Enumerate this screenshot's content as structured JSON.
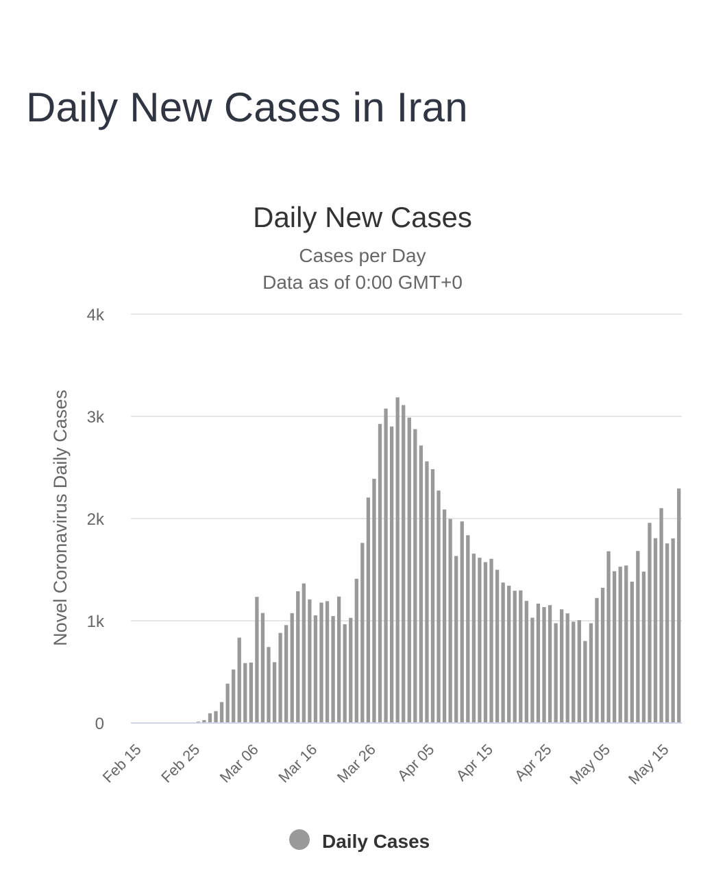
{
  "page": {
    "title": "Daily New Cases in Iran"
  },
  "colors": {
    "bar": "#999999",
    "grid": "#e6e6e6",
    "baseline": "#ccd6eb",
    "title": "#2f3542"
  },
  "chart_data": {
    "type": "bar",
    "title": "Daily New Cases",
    "subtitle_lines": [
      "Cases per Day",
      "Data as of 0:00 GMT+0"
    ],
    "ylabel": "Novel Coronavirus Daily Cases",
    "xlabel": "",
    "ylim": [
      0,
      4000
    ],
    "y_ticks": [
      {
        "value": 0,
        "label": "0"
      },
      {
        "value": 1000,
        "label": "1k"
      },
      {
        "value": 2000,
        "label": "2k"
      },
      {
        "value": 3000,
        "label": "3k"
      },
      {
        "value": 4000,
        "label": "4k"
      }
    ],
    "x_ticks": [
      "Feb 15",
      "Feb 25",
      "Mar 06",
      "Mar 16",
      "Mar 26",
      "Apr 05",
      "Apr 15",
      "Apr 25",
      "May 05",
      "May 15"
    ],
    "x_tick_every": 10,
    "first_date_label": "Feb 15",
    "grid": true,
    "legend": {
      "position": "bottom-center",
      "label": "Daily Cases"
    },
    "series": [
      {
        "name": "Daily Cases",
        "values": [
          0,
          0,
          0,
          0,
          0,
          0,
          0,
          0,
          0,
          0,
          0,
          13,
          28,
          95,
          116,
          205,
          385,
          523,
          835,
          586,
          591,
          1234,
          1076,
          743,
          595,
          881,
          958,
          1075,
          1289,
          1365,
          1209,
          1053,
          1178,
          1192,
          1046,
          1237,
          966,
          1028,
          1411,
          1762,
          2206,
          2389,
          2926,
          3076,
          2901,
          3186,
          3110,
          2988,
          2875,
          2715,
          2560,
          2483,
          2274,
          2089,
          1997,
          1634,
          1972,
          1837,
          1657,
          1617,
          1574,
          1606,
          1499,
          1374,
          1343,
          1294,
          1297,
          1194,
          1030,
          1168,
          1134,
          1153,
          976,
          1112,
          1073,
          991,
          1006,
          802,
          976,
          1223,
          1323,
          1680,
          1485,
          1529,
          1541,
          1383,
          1683,
          1481,
          1958,
          1808,
          2102,
          1757,
          1806,
          2294
        ]
      }
    ]
  }
}
